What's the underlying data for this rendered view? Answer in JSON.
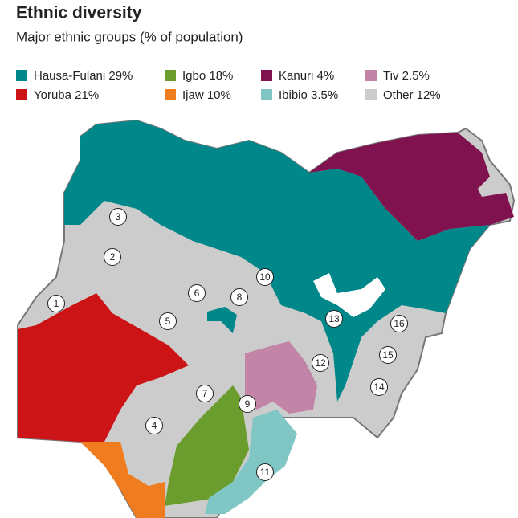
{
  "header": {
    "title": "Ethnic diversity",
    "subtitle": "Major ethnic groups (% of population)"
  },
  "legend": [
    {
      "label": "Hausa-Fulani 29%",
      "color": "#00878a"
    },
    {
      "label": "Yoruba 21%",
      "color": "#cc1417"
    },
    {
      "label": "Igbo 18%",
      "color": "#6a9c2e"
    },
    {
      "label": "Ijaw 10%",
      "color": "#ef7d1f"
    },
    {
      "label": "Kanuri 4%",
      "color": "#80134f"
    },
    {
      "label": "Ibibio 3.5%",
      "color": "#7fc6c5"
    },
    {
      "label": "Tiv 2.5%",
      "color": "#c285a8"
    },
    {
      "label": "Other 12%",
      "color": "#cccccc"
    }
  ],
  "markers": [
    {
      "label": "1"
    },
    {
      "label": "2"
    },
    {
      "label": "3"
    },
    {
      "label": "4"
    },
    {
      "label": "5"
    },
    {
      "label": "6"
    },
    {
      "label": "7"
    },
    {
      "label": "8"
    },
    {
      "label": "9"
    },
    {
      "label": "10"
    },
    {
      "label": "11"
    },
    {
      "label": "12"
    },
    {
      "label": "13"
    },
    {
      "label": "14"
    },
    {
      "label": "15"
    },
    {
      "label": "16"
    }
  ]
}
